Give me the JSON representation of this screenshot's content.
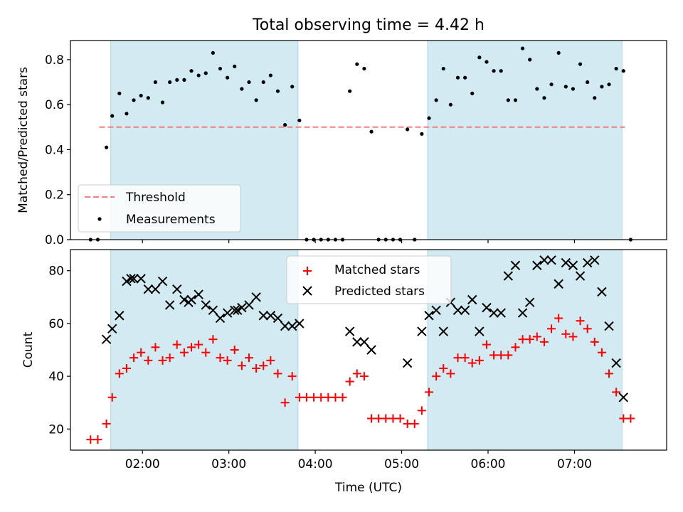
{
  "title": "Total observing time = 4.42 h",
  "colors": {
    "band": "#add8e6",
    "matched": "#ff0000",
    "predicted": "#000000",
    "threshold": "#f08080",
    "measurement": "#000000"
  },
  "chart_data": [
    {
      "type": "scatter",
      "ylabel": "Matched/Predicted stars",
      "ylim": [
        0,
        0.885
      ],
      "yticks": [
        0.0,
        0.2,
        0.4,
        0.6,
        0.8
      ],
      "ytick_labels": [
        "0.0",
        "0.2",
        "0.4",
        "0.6",
        "0.8"
      ],
      "xlim": [
        "01:10",
        "08:04"
      ],
      "shaded_intervals": [
        [
          "01:38",
          "03:48"
        ],
        [
          "05:18",
          "07:33"
        ]
      ],
      "legend": {
        "placement": "lower-left",
        "entries": [
          {
            "label": "Threshold",
            "style": "dashed-line",
            "color": "#f08080"
          },
          {
            "label": "Measurements",
            "style": "dot",
            "color": "#000000"
          }
        ]
      },
      "threshold": {
        "name": "Threshold",
        "value": 0.5,
        "x_range": [
          "01:30",
          "07:35"
        ]
      },
      "series": [
        {
          "name": "Measurements",
          "x": [
            "01:24",
            "01:29",
            "01:35",
            "01:39",
            "01:44",
            "01:49",
            "01:54",
            "01:59",
            "02:04",
            "02:09",
            "02:14",
            "02:19",
            "02:24",
            "02:29",
            "02:34",
            "02:39",
            "02:44",
            "02:49",
            "02:54",
            "02:59",
            "03:04",
            "03:09",
            "03:14",
            "03:19",
            "03:24",
            "03:29",
            "03:34",
            "03:39",
            "03:44",
            "03:49",
            "03:54",
            "03:59",
            "04:04",
            "04:09",
            "04:14",
            "04:19",
            "04:24",
            "04:29",
            "04:34",
            "04:39",
            "04:44",
            "04:49",
            "04:54",
            "04:59",
            "05:04",
            "05:09",
            "05:14",
            "05:19",
            "05:24",
            "05:29",
            "05:34",
            "05:39",
            "05:44",
            "05:49",
            "05:54",
            "05:59",
            "06:04",
            "06:09",
            "06:14",
            "06:19",
            "06:24",
            "06:29",
            "06:34",
            "06:39",
            "06:44",
            "06:49",
            "06:54",
            "06:59",
            "07:04",
            "07:09",
            "07:14",
            "07:19",
            "07:24",
            "07:29",
            "07:34",
            "07:39"
          ],
          "y": [
            0.0,
            0.0,
            0.41,
            0.55,
            0.65,
            0.56,
            0.62,
            0.64,
            0.63,
            0.7,
            0.61,
            0.7,
            0.71,
            0.71,
            0.75,
            0.73,
            0.74,
            0.83,
            0.76,
            0.72,
            0.77,
            0.67,
            0.7,
            0.62,
            0.7,
            0.73,
            0.66,
            0.51,
            0.68,
            0.53,
            0.0,
            0.0,
            0.0,
            0.0,
            0.0,
            0.0,
            0.66,
            0.78,
            0.76,
            0.48,
            0.0,
            0.0,
            0.0,
            0.0,
            0.49,
            0.0,
            0.47,
            0.54,
            0.62,
            0.76,
            0.6,
            0.72,
            0.72,
            0.65,
            0.81,
            0.79,
            0.75,
            0.75,
            0.62,
            0.62,
            0.85,
            0.8,
            0.67,
            0.63,
            0.69,
            0.83,
            0.68,
            0.67,
            0.78,
            0.7,
            0.63,
            0.68,
            0.69,
            0.76,
            0.75,
            0.0
          ]
        }
      ]
    },
    {
      "type": "scatter",
      "xlabel": "Time (UTC)",
      "ylabel": "Count",
      "ylim": [
        12,
        88
      ],
      "yticks": [
        20,
        40,
        60,
        80
      ],
      "ytick_labels": [
        "20",
        "40",
        "60",
        "80"
      ],
      "xlim": [
        "01:10",
        "08:04"
      ],
      "xticks": [
        "02:00",
        "03:00",
        "04:00",
        "05:00",
        "06:00",
        "07:00"
      ],
      "xtick_labels": [
        "02:00",
        "03:00",
        "04:00",
        "05:00",
        "06:00",
        "07:00"
      ],
      "shaded_intervals": [
        [
          "01:38",
          "03:48"
        ],
        [
          "05:18",
          "07:33"
        ]
      ],
      "legend": {
        "placement": "upper-center",
        "entries": [
          {
            "label": "Matched stars",
            "marker": "+",
            "color": "#ff0000"
          },
          {
            "label": "Predicted stars",
            "marker": "x",
            "color": "#000000"
          }
        ]
      },
      "series": [
        {
          "name": "Matched stars",
          "marker": "+",
          "x": [
            "01:24",
            "01:29",
            "01:35",
            "01:39",
            "01:44",
            "01:49",
            "01:54",
            "01:59",
            "02:04",
            "02:09",
            "02:14",
            "02:19",
            "02:24",
            "02:29",
            "02:34",
            "02:39",
            "02:44",
            "02:49",
            "02:54",
            "02:59",
            "03:04",
            "03:09",
            "03:14",
            "03:19",
            "03:24",
            "03:29",
            "03:34",
            "03:39",
            "03:44",
            "03:49",
            "03:54",
            "03:59",
            "04:04",
            "04:09",
            "04:14",
            "04:19",
            "04:24",
            "04:29",
            "04:34",
            "04:39",
            "04:44",
            "04:49",
            "04:54",
            "04:59",
            "05:04",
            "05:09",
            "05:14",
            "05:19",
            "05:24",
            "05:29",
            "05:34",
            "05:39",
            "05:44",
            "05:49",
            "05:54",
            "05:59",
            "06:04",
            "06:09",
            "06:14",
            "06:19",
            "06:24",
            "06:29",
            "06:34",
            "06:39",
            "06:44",
            "06:49",
            "06:54",
            "06:59",
            "07:04",
            "07:09",
            "07:14",
            "07:19",
            "07:24",
            "07:29",
            "07:34",
            "07:39"
          ],
          "y": [
            16,
            16,
            22,
            32,
            41,
            43,
            47,
            49,
            46,
            51,
            46,
            47,
            52,
            49,
            51,
            52,
            49,
            54,
            47,
            46,
            50,
            44,
            47,
            43,
            44,
            46,
            41,
            30,
            40,
            32,
            32,
            32,
            32,
            32,
            32,
            32,
            38,
            41,
            40,
            24,
            24,
            24,
            24,
            24,
            22,
            22,
            27,
            34,
            40,
            43,
            41,
            47,
            47,
            45,
            46,
            52,
            48,
            48,
            48,
            51,
            54,
            54,
            55,
            53,
            58,
            62,
            56,
            55,
            61,
            58,
            53,
            49,
            41,
            34,
            24,
            24
          ]
        },
        {
          "name": "Predicted stars",
          "marker": "x",
          "x": [
            "01:35",
            "01:39",
            "01:44",
            "01:49",
            "01:52",
            "01:54",
            "01:59",
            "02:04",
            "02:09",
            "02:14",
            "02:19",
            "02:24",
            "02:29",
            "02:32",
            "02:34",
            "02:39",
            "02:44",
            "02:49",
            "02:54",
            "02:59",
            "03:04",
            "03:06",
            "03:09",
            "03:14",
            "03:19",
            "03:24",
            "03:29",
            "03:34",
            "03:39",
            "03:44",
            "03:49",
            "04:24",
            "04:29",
            "04:34",
            "04:39",
            "05:04",
            "05:14",
            "05:19",
            "05:24",
            "05:29",
            "05:34",
            "05:39",
            "05:44",
            "05:49",
            "05:54",
            "05:59",
            "06:04",
            "06:09",
            "06:14",
            "06:19",
            "06:24",
            "06:29",
            "06:34",
            "06:39",
            "06:44",
            "06:49",
            "06:54",
            "06:59",
            "07:04",
            "07:09",
            "07:14",
            "07:19",
            "07:24",
            "07:29",
            "07:34"
          ],
          "y": [
            54,
            58,
            63,
            76,
            77,
            77,
            77,
            73,
            73,
            76,
            67,
            73,
            69,
            68,
            69,
            71,
            67,
            65,
            62,
            64,
            65,
            65,
            66,
            67,
            70,
            63,
            63,
            62,
            59,
            59,
            60,
            57,
            53,
            53,
            50,
            45,
            57,
            63,
            65,
            57,
            68,
            65,
            65,
            69,
            57,
            66,
            64,
            64,
            78,
            82,
            64,
            68,
            82,
            84,
            84,
            75,
            83,
            82,
            78,
            83,
            84,
            72,
            59,
            45,
            32
          ]
        }
      ]
    }
  ]
}
